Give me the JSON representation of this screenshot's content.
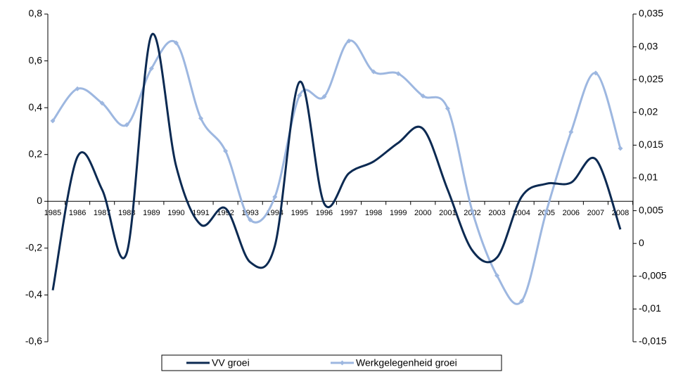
{
  "chart_data": {
    "type": "line",
    "categories": [
      "1985",
      "1986",
      "1987",
      "1988",
      "1989",
      "1990",
      "1991",
      "1992",
      "1993",
      "1994",
      "1995",
      "1996",
      "1997",
      "1998",
      "1999",
      "2000",
      "2001",
      "2002",
      "2003",
      "2004",
      "2005",
      "2006",
      "2007",
      "2008"
    ],
    "series": [
      {
        "name": "VV groei",
        "color": "#0c2a52",
        "axis": "y",
        "markers": false,
        "values": [
          -0.38,
          0.19,
          0.05,
          -0.22,
          0.71,
          0.15,
          -0.1,
          -0.03,
          -0.26,
          -0.19,
          0.51,
          -0.01,
          0.12,
          0.17,
          0.25,
          0.31,
          0.05,
          -0.21,
          -0.24,
          0.02,
          0.075,
          0.08,
          0.18,
          -0.12
        ]
      },
      {
        "name": "Werkgelegenheid groei",
        "color": "#9db7e0",
        "axis": "y2",
        "markers": true,
        "values": [
          0.0187,
          0.0236,
          0.0214,
          0.0181,
          0.0267,
          0.0306,
          0.0191,
          0.0141,
          0.0036,
          0.0071,
          0.0226,
          0.0224,
          0.0309,
          0.0262,
          0.0259,
          0.0225,
          0.0206,
          0.0049,
          -0.0049,
          -0.0088,
          0.0049,
          0.017,
          0.026,
          0.0145
        ]
      }
    ],
    "ylim": [
      -0.6,
      0.8
    ],
    "yticks": [
      {
        "value": -0.6,
        "label": "-0,6"
      },
      {
        "value": -0.4,
        "label": "-0,4"
      },
      {
        "value": -0.2,
        "label": "-0,2"
      },
      0,
      {
        "value": 0.2,
        "label": "0,2"
      },
      {
        "value": 0.4,
        "label": "0,4"
      },
      {
        "value": 0.6,
        "label": "0,6"
      },
      {
        "value": 0.8,
        "label": "0,8"
      }
    ],
    "y2lim": [
      -0.015,
      0.035
    ],
    "y2ticks": [
      {
        "value": -0.015,
        "label": "-0,015"
      },
      {
        "value": -0.01,
        "label": "-0,01"
      },
      {
        "value": -0.005,
        "label": "-0,005"
      },
      0,
      {
        "value": 0.005,
        "label": "0,005"
      },
      {
        "value": 0.01,
        "label": "0,01"
      },
      {
        "value": 0.015,
        "label": "0,015"
      },
      {
        "value": 0.02,
        "label": "0,02"
      },
      {
        "value": 0.025,
        "label": "0,025"
      },
      {
        "value": 0.03,
        "label": "0,03"
      },
      {
        "value": 0.035,
        "label": "0,035"
      }
    ],
    "legend": "bottom"
  }
}
